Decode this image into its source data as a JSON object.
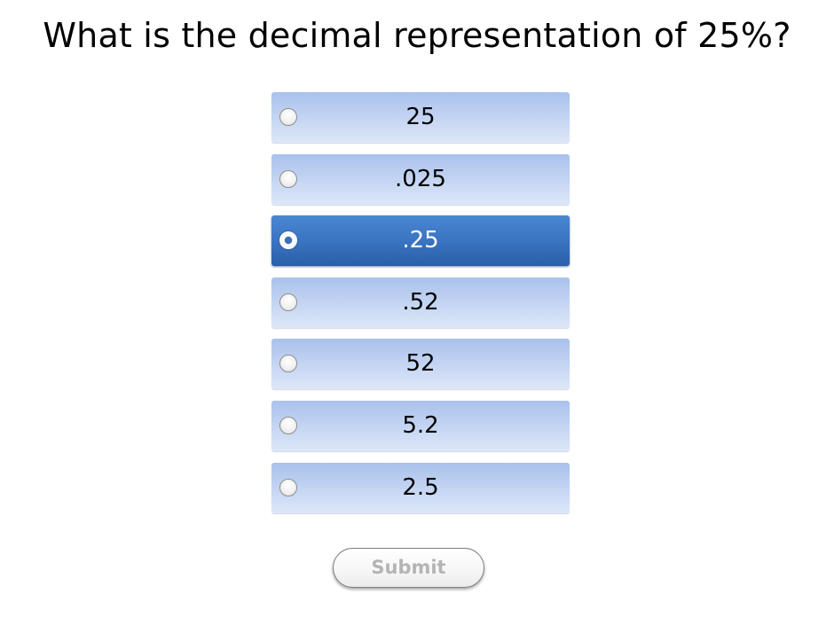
{
  "question": {
    "text": "What is the decimal representation of 25%?"
  },
  "options": [
    {
      "label": "25",
      "selected": false
    },
    {
      "label": ".025",
      "selected": false
    },
    {
      "label": ".25",
      "selected": true
    },
    {
      "label": ".52",
      "selected": false
    },
    {
      "label": "52",
      "selected": false
    },
    {
      "label": "5.2",
      "selected": false
    },
    {
      "label": "2.5",
      "selected": false
    }
  ],
  "submit": {
    "label": "Submit",
    "enabled": false
  },
  "colors": {
    "option_bg": "#c6d6f3",
    "option_selected_bg": "#3a74c2",
    "submit_text_disabled": "#b4b4b4"
  }
}
